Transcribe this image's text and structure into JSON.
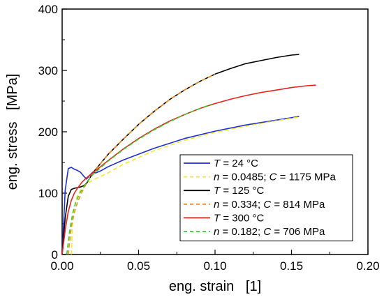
{
  "chart_data": {
    "type": "line",
    "xlabel": "eng. strain   [1]",
    "ylabel": "eng. stress   [MPa]",
    "xlim": [
      0,
      0.2
    ],
    "ylim": [
      0,
      400
    ],
    "x_ticks": [
      0.0,
      0.05,
      0.1,
      0.15,
      0.2
    ],
    "x_tick_labels": [
      "0.00",
      "0.05",
      "0.10",
      "0.15",
      "0.20"
    ],
    "y_ticks": [
      0,
      100,
      200,
      300,
      400
    ],
    "y_tick_labels": [
      "0",
      "100",
      "200",
      "300",
      "400"
    ],
    "grid": false,
    "legend_position": "bottom-right",
    "series": [
      {
        "key": "t24",
        "legend_parts": [
          {
            "t": "T",
            "i": true
          },
          {
            "t": " = 24 °C"
          }
        ],
        "color": "#1f2fd6",
        "dash": "solid",
        "x": [
          0.0,
          0.002,
          0.004,
          0.006,
          0.008,
          0.01,
          0.012,
          0.014,
          0.016,
          0.018,
          0.02,
          0.022,
          0.025,
          0.03,
          0.04,
          0.06,
          0.08,
          0.1,
          0.12,
          0.14,
          0.15,
          0.155
        ],
        "y": [
          0,
          105,
          140,
          142,
          139,
          137,
          134,
          128,
          123,
          129,
          134,
          133,
          136,
          143,
          154,
          173,
          189,
          201,
          211,
          219,
          223,
          225
        ]
      },
      {
        "key": "fit24",
        "legend_parts": [
          {
            "t": "n",
            "i": true
          },
          {
            "t": " = 0.0485; "
          },
          {
            "t": "C",
            "i": true
          },
          {
            "t": " = 1175 MPa"
          }
        ],
        "color": "#f2e82b",
        "dash": "dashed",
        "x": [
          0.006,
          0.007,
          0.009,
          0.012,
          0.016,
          0.02,
          0.025,
          0.03,
          0.04,
          0.06,
          0.08,
          0.1,
          0.12,
          0.14,
          0.155
        ],
        "y": [
          0,
          60,
          90,
          105,
          115,
          121,
          127,
          133,
          147,
          169,
          186,
          199,
          209,
          218,
          224
        ]
      },
      {
        "key": "t125",
        "legend_parts": [
          {
            "t": "T",
            "i": true
          },
          {
            "t": " = 125 °C"
          }
        ],
        "color": "#000000",
        "dash": "solid",
        "x": [
          0.0,
          0.002,
          0.004,
          0.006,
          0.008,
          0.01,
          0.012,
          0.014,
          0.016,
          0.018,
          0.02,
          0.025,
          0.03,
          0.04,
          0.05,
          0.06,
          0.07,
          0.08,
          0.09,
          0.1,
          0.11,
          0.12,
          0.13,
          0.14,
          0.15,
          0.155
        ],
        "y": [
          0,
          60,
          95,
          106,
          108,
          109,
          110,
          112,
          116,
          124,
          133,
          148,
          163,
          188,
          212,
          233,
          252,
          268,
          282,
          294,
          303,
          311,
          316,
          321,
          325,
          326
        ]
      },
      {
        "key": "fit125",
        "legend_parts": [
          {
            "t": "n",
            "i": true
          },
          {
            "t": " = 0.334; "
          },
          {
            "t": "C",
            "i": true
          },
          {
            "t": " = 814 MPa"
          }
        ],
        "color": "#f28c1c",
        "dash": "dashed",
        "x": [
          0.004,
          0.006,
          0.008,
          0.01,
          0.013,
          0.016,
          0.02,
          0.025,
          0.03,
          0.04,
          0.05,
          0.06,
          0.07,
          0.08,
          0.09,
          0.1
        ],
        "y": [
          0,
          45,
          68,
          85,
          102,
          116,
          132,
          148,
          163,
          188,
          212,
          233,
          252,
          268,
          282,
          294
        ]
      },
      {
        "key": "t300",
        "legend_parts": [
          {
            "t": "T",
            "i": true
          },
          {
            "t": " = 300 °C"
          }
        ],
        "color": "#e8231c",
        "dash": "solid",
        "x": [
          0.0,
          0.002,
          0.004,
          0.006,
          0.008,
          0.01,
          0.013,
          0.016,
          0.02,
          0.025,
          0.03,
          0.04,
          0.05,
          0.06,
          0.07,
          0.08,
          0.09,
          0.1,
          0.11,
          0.12,
          0.13,
          0.14,
          0.15,
          0.16,
          0.166
        ],
        "y": [
          0,
          40,
          70,
          88,
          100,
          108,
          118,
          125,
          133,
          143,
          153,
          172,
          189,
          204,
          217,
          228,
          238,
          246,
          253,
          259,
          264,
          268,
          272,
          275,
          276
        ]
      },
      {
        "key": "fit300",
        "legend_parts": [
          {
            "t": "n",
            "i": true
          },
          {
            "t": " = 0.182; "
          },
          {
            "t": "C",
            "i": true
          },
          {
            "t": " = 706 MPa"
          }
        ],
        "color": "#33d12b",
        "dash": "dashed",
        "x": [
          0.003,
          0.005,
          0.007,
          0.009,
          0.012,
          0.016,
          0.02,
          0.025,
          0.03,
          0.04,
          0.05,
          0.06,
          0.07,
          0.08,
          0.09,
          0.098
        ],
        "y": [
          0,
          40,
          68,
          86,
          102,
          118,
          130,
          141,
          152,
          171,
          188,
          203,
          216,
          228,
          238,
          245
        ]
      }
    ]
  }
}
